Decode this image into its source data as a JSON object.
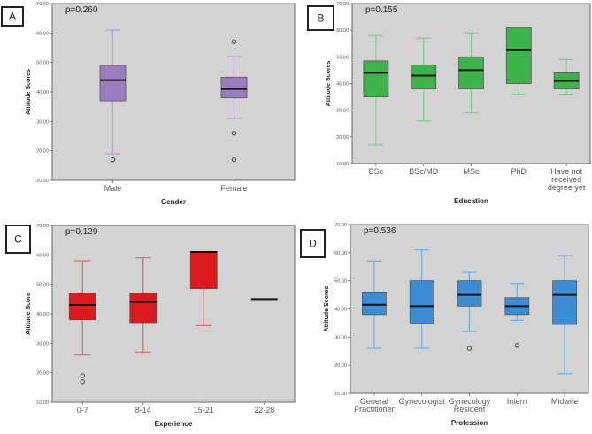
{
  "chart_data": [
    {
      "type": "box",
      "panel_label": "A",
      "annotation": "p=0.260",
      "xlabel": "Gender",
      "ylabel": "Attitude Scores",
      "ylim": [
        10,
        70
      ],
      "yticks": [
        "10.00",
        "20.00",
        "30.00",
        "40.00",
        "50.00",
        "60.00",
        "70.00"
      ],
      "color": "#9b7dc0",
      "whisker_color": "#b8a0d6",
      "categories": [
        [
          "Male"
        ],
        [
          "Female"
        ]
      ],
      "boxes": [
        {
          "min": 19,
          "q1": 37,
          "median": 44,
          "q3": 49,
          "max": 61,
          "outliers": [
            17
          ]
        },
        {
          "min": 31,
          "q1": 38,
          "median": 41,
          "q3": 45,
          "max": 52,
          "outliers": [
            57,
            26,
            17
          ]
        }
      ]
    },
    {
      "type": "box",
      "panel_label": "B",
      "annotation": "p=0.155",
      "xlabel": "Education",
      "ylabel": "Attitude Scores",
      "ylim": [
        10,
        70
      ],
      "yticks": [
        "10.00",
        "20.00",
        "30.00",
        "40.00",
        "50.00",
        "60.00",
        "70.00"
      ],
      "color": "#3cb44a",
      "whisker_color": "#7ccf86",
      "categories": [
        [
          "BSc"
        ],
        [
          "BSc/MD"
        ],
        [
          "MSc"
        ],
        [
          "PhD"
        ],
        [
          "Have not",
          "received",
          "degree yet"
        ]
      ],
      "boxes": [
        {
          "min": 17,
          "q1": 35,
          "median": 44,
          "q3": 48.5,
          "max": 58,
          "outliers": []
        },
        {
          "min": 26,
          "q1": 38,
          "median": 43,
          "q3": 47,
          "max": 57,
          "outliers": []
        },
        {
          "min": 29,
          "q1": 38,
          "median": 45,
          "q3": 50,
          "max": 59,
          "outliers": []
        },
        {
          "min": 36,
          "q1": 40,
          "median": 52.5,
          "q3": 61,
          "max": 61,
          "outliers": []
        },
        {
          "min": 36,
          "q1": 38,
          "median": 41,
          "q3": 44,
          "max": 49,
          "outliers": []
        }
      ]
    },
    {
      "type": "box",
      "panel_label": "C",
      "annotation": "p=0.129",
      "xlabel": "Experience",
      "ylabel": "Attitude Score",
      "ylim": [
        10,
        70
      ],
      "yticks": [
        "10.00",
        "20.00",
        "30.00",
        "40.00",
        "50.00",
        "60.00",
        "70.00"
      ],
      "color": "#dc1a1e",
      "whisker_color": "#e06466",
      "categories": [
        [
          "0-7"
        ],
        [
          "8-14"
        ],
        [
          "15-21"
        ],
        [
          "22-28"
        ]
      ],
      "boxes": [
        {
          "min": 26,
          "q1": 38,
          "median": 43,
          "q3": 47,
          "max": 58,
          "outliers": [
            17,
            19
          ]
        },
        {
          "min": 27,
          "q1": 37,
          "median": 44,
          "q3": 47,
          "max": 59,
          "outliers": []
        },
        {
          "min": 36,
          "q1": 48.5,
          "median": 61,
          "q3": 61,
          "max": 61,
          "outliers": []
        },
        {
          "min": 45,
          "q1": 45,
          "median": 45,
          "q3": 45,
          "max": 45,
          "outliers": []
        }
      ]
    },
    {
      "type": "box",
      "panel_label": "D",
      "annotation": "p=0.536",
      "xlabel": "Profession",
      "ylabel": "Attitude Scores",
      "ylim": [
        10,
        70
      ],
      "yticks": [
        "10.00",
        "20.00",
        "30.00",
        "40.00",
        "50.00",
        "60.00",
        "70.00"
      ],
      "color": "#3b8ed3",
      "whisker_color": "#6cafe2",
      "categories": [
        [
          "General",
          "Practitioner"
        ],
        [
          "Gynecologist"
        ],
        [
          "Gynecology",
          "Resident"
        ],
        [
          "Intern"
        ],
        [
          "Midwife"
        ]
      ],
      "boxes": [
        {
          "min": 26,
          "q1": 38,
          "median": 41.5,
          "q3": 46,
          "max": 57,
          "outliers": []
        },
        {
          "min": 26,
          "q1": 35,
          "median": 41,
          "q3": 50,
          "max": 61,
          "outliers": []
        },
        {
          "min": 32,
          "q1": 41,
          "median": 45,
          "q3": 50,
          "max": 53,
          "outliers": [
            26
          ]
        },
        {
          "min": 36,
          "q1": 38,
          "median": 41,
          "q3": 44,
          "max": 49,
          "outliers": [
            27
          ]
        },
        {
          "min": 17,
          "q1": 34.5,
          "median": 45,
          "q3": 50,
          "max": 59,
          "outliers": []
        }
      ]
    }
  ]
}
